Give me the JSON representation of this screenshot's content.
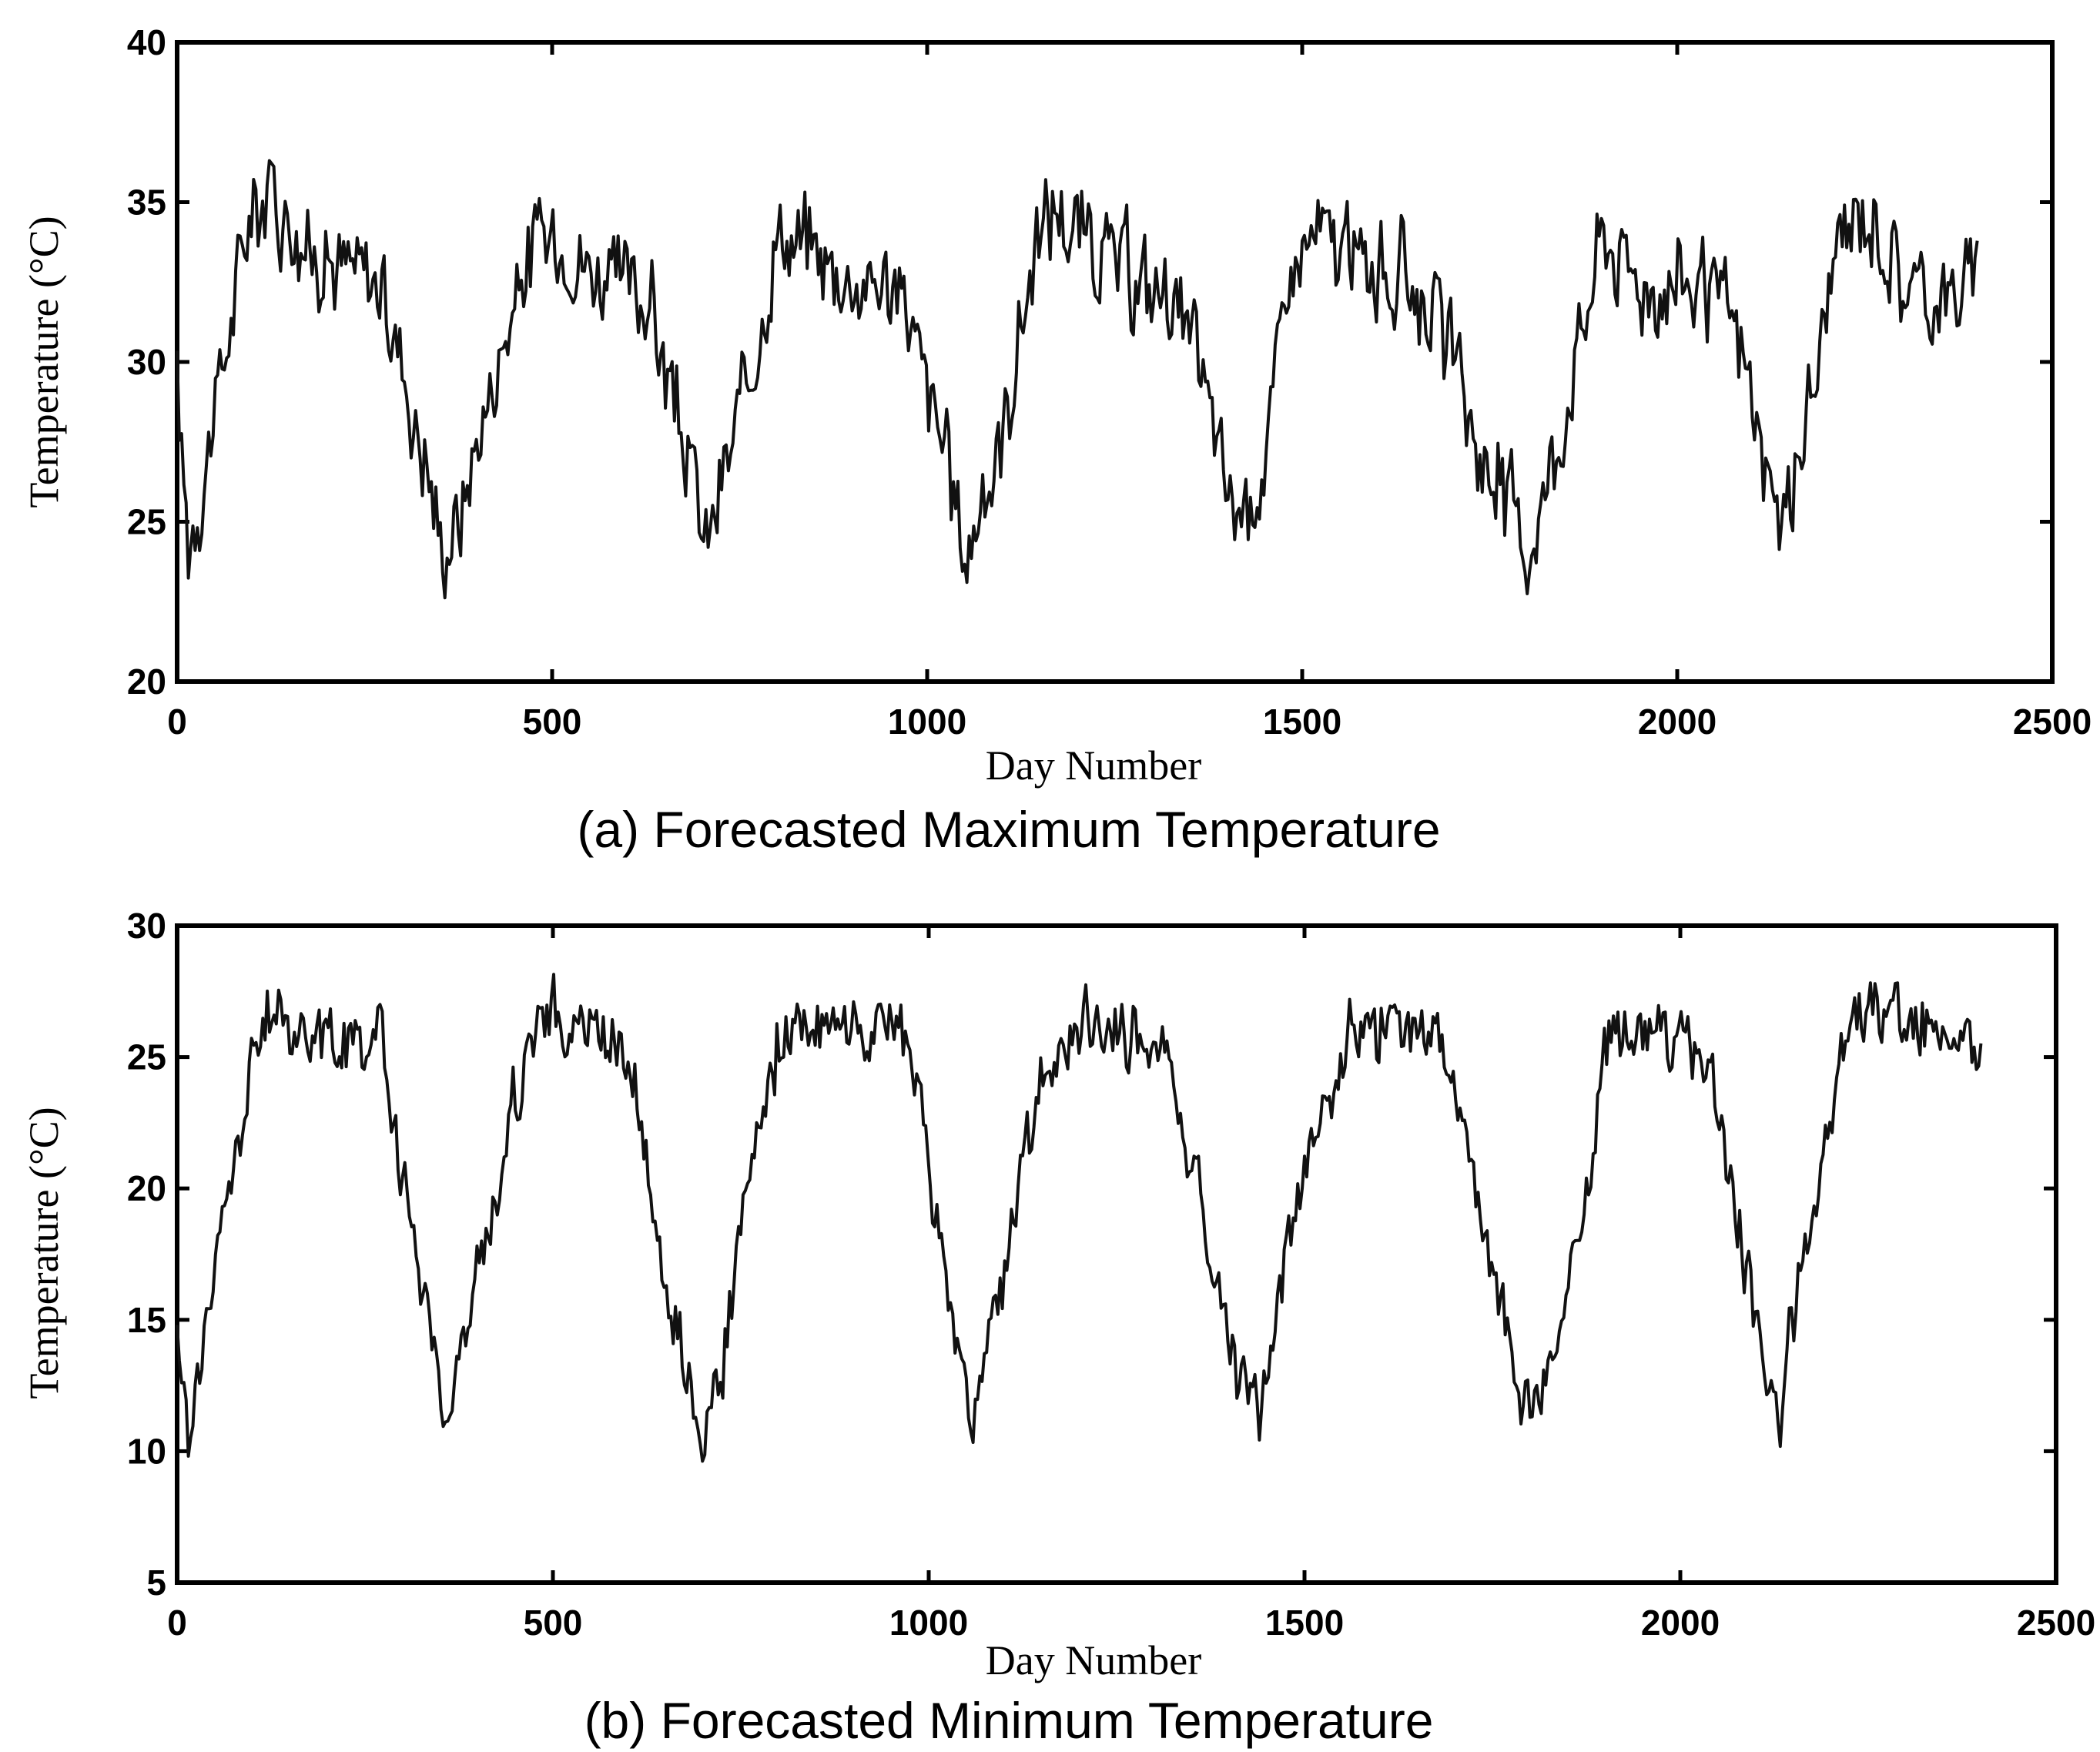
{
  "chart_data": [
    {
      "type": "line",
      "caption": "(a) Forecasted Maximum Temperature",
      "xlabel": "Day Number",
      "ylabel": "Temperature (°C)",
      "xlim": [
        0,
        2500
      ],
      "ylim": [
        20,
        40
      ],
      "xticks": [
        "0",
        "500",
        "1000",
        "1500",
        "2000",
        "2500"
      ],
      "yticks": [
        "20",
        "25",
        "30",
        "35",
        "40"
      ],
      "grid": false,
      "series": [
        {
          "x": [
            0,
            15,
            40,
            70,
            100,
            130,
            170,
            220,
            270,
            300,
            330,
            355,
            375,
            400,
            440,
            480,
            520,
            580,
            630,
            660,
            690,
            705,
            730,
            770,
            800,
            850,
            900,
            960,
            990,
            1020,
            1050,
            1080,
            1110,
            1140,
            1170,
            1220,
            1280,
            1330,
            1370,
            1400,
            1430,
            1460,
            1480,
            1520,
            1580,
            1650,
            1700,
            1740,
            1780,
            1800,
            1830,
            1870,
            1900,
            1950,
            2020,
            2070,
            2100,
            2125,
            2150,
            2180,
            2210,
            2250,
            2300,
            2350,
            2400
          ],
          "y": [
            29,
            24.5,
            27,
            31,
            35,
            35.5,
            33.5,
            33,
            32.5,
            30,
            27,
            24,
            25,
            27.5,
            31,
            34,
            33.5,
            32.5,
            32,
            29,
            26,
            24,
            26.5,
            30,
            34,
            33.5,
            32.5,
            32.5,
            30,
            27.5,
            24,
            26,
            29,
            33,
            35,
            33.5,
            32.5,
            32,
            29,
            26,
            25,
            28.5,
            32.5,
            34,
            33,
            32.5,
            30,
            27,
            25.5,
            24,
            26.5,
            30.5,
            34,
            32.5,
            32.5,
            31.5,
            29,
            25,
            25.5,
            29,
            33,
            35,
            32.5,
            32,
            32.5
          ]
        }
      ]
    },
    {
      "type": "line",
      "caption": "(b) Forecasted Minimum Temperature",
      "xlabel": "Day Number",
      "ylabel": "Temperature (°C)",
      "xlim": [
        0,
        2500
      ],
      "ylim": [
        5,
        30
      ],
      "xticks": [
        "0",
        "500",
        "1000",
        "1500",
        "2000",
        "2500"
      ],
      "yticks": [
        "5",
        "10",
        "15",
        "20",
        "25",
        "30"
      ],
      "grid": false,
      "series": [
        {
          "x": [
            0,
            15,
            40,
            70,
            100,
            120,
            170,
            230,
            270,
            300,
            330,
            360,
            380,
            410,
            440,
            470,
            500,
            550,
            600,
            630,
            660,
            700,
            730,
            760,
            800,
            850,
            900,
            970,
            1000,
            1030,
            1060,
            1080,
            1110,
            1150,
            1200,
            1260,
            1320,
            1350,
            1380,
            1410,
            1440,
            1470,
            1510,
            1560,
            1620,
            1680,
            1720,
            1750,
            1780,
            1810,
            1830,
            1870,
            1900,
            1950,
            2000,
            2040,
            2070,
            2100,
            2130,
            2150,
            2180,
            2210,
            2240,
            2280,
            2340,
            2400
          ],
          "y": [
            14,
            10.5,
            15,
            20,
            24.5,
            26.5,
            26,
            25.5,
            26,
            20,
            16,
            11,
            14,
            18,
            22,
            26,
            26.5,
            26,
            25.5,
            20,
            15,
            11,
            14,
            20,
            25.5,
            26.5,
            26,
            26,
            21,
            15,
            11,
            14,
            18.5,
            24,
            26,
            26,
            25,
            21,
            17,
            13,
            11.5,
            17,
            22,
            26,
            26,
            25.5,
            21,
            17,
            13,
            11.5,
            14,
            18.5,
            26,
            26,
            25.5,
            24.5,
            20,
            15,
            11,
            15,
            20,
            24,
            27,
            26.5,
            26,
            25
          ]
        }
      ]
    }
  ]
}
